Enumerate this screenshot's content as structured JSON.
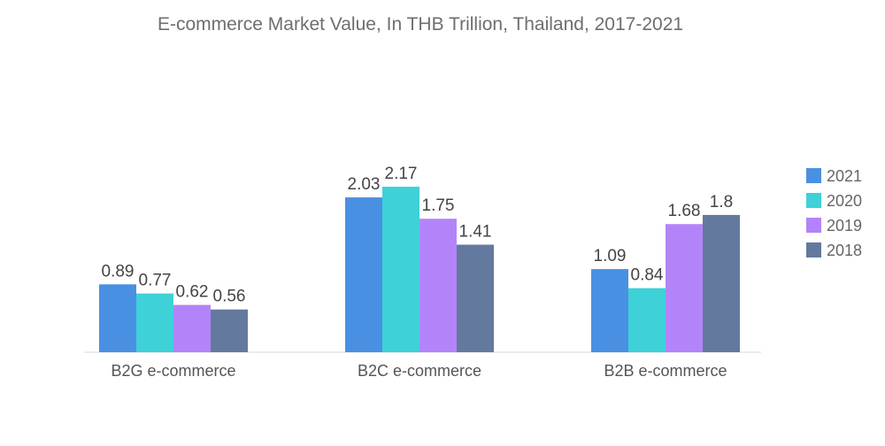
{
  "chart_data": {
    "type": "bar",
    "title": "E-commerce Market Value, In THB Trillion, Thailand, 2017-2021",
    "xlabel": "",
    "ylabel": "",
    "categories": [
      "B2G e-commerce",
      "B2C e-commerce",
      "B2B e-commerce"
    ],
    "series": [
      {
        "name": "2021",
        "color": "#4a90e2",
        "values": [
          0.89,
          2.03,
          1.09
        ]
      },
      {
        "name": "2020",
        "color": "#3ed1d8",
        "values": [
          0.77,
          2.17,
          0.84
        ]
      },
      {
        "name": "2019",
        "color": "#b384f9",
        "values": [
          0.62,
          1.75,
          1.68
        ]
      },
      {
        "name": "2018",
        "color": "#64799e",
        "values": [
          0.56,
          1.41,
          1.8
        ]
      }
    ],
    "ylim": [
      0,
      2.17
    ],
    "grid": false,
    "legend": "right"
  }
}
